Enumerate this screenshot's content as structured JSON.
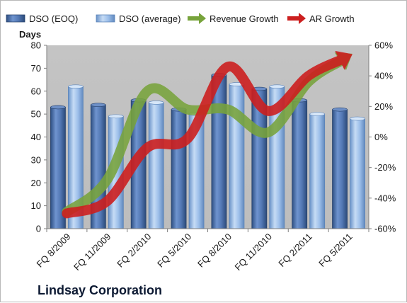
{
  "chart_data": {
    "type": "bar",
    "title": "Lindsay Corporation",
    "ylabel": "Days",
    "ylim": [
      0,
      80
    ],
    "yticks": [
      0,
      10,
      20,
      30,
      40,
      50,
      60,
      70,
      80
    ],
    "y2lim": [
      -0.6,
      0.6
    ],
    "y2ticks": [
      "-60%",
      "-40%",
      "-20%",
      "0%",
      "20%",
      "40%",
      "60%"
    ],
    "y2tick_values": [
      -0.6,
      -0.4,
      -0.2,
      0,
      0.2,
      0.4,
      0.6
    ],
    "categories": [
      "FQ 8/2009",
      "FQ 11/2009",
      "FQ 2/2010",
      "FQ 5/2010",
      "FQ 8/2010",
      "FQ 11/2010",
      "FQ 2/2011",
      "FQ 5/2011"
    ],
    "series": [
      {
        "name": "DSO (EOQ)",
        "type": "bar",
        "axis": "left",
        "color": "#4a6fa8",
        "values": [
          53,
          54,
          56,
          52,
          67,
          61,
          56,
          52
        ]
      },
      {
        "name": "DSO (average)",
        "type": "bar",
        "axis": "left",
        "color": "#8fb4e3",
        "values": [
          62,
          49,
          55,
          50,
          63,
          62,
          50,
          48
        ]
      },
      {
        "name": "Revenue Growth",
        "type": "line",
        "axis": "right",
        "color": "#77a33b",
        "values": [
          -0.49,
          -0.28,
          0.3,
          0.18,
          0.18,
          0.03,
          0.36,
          0.53
        ]
      },
      {
        "name": "AR Growth",
        "type": "line",
        "axis": "right",
        "color": "#cc1f1f",
        "values": [
          -0.5,
          -0.42,
          -0.07,
          -0.01,
          0.46,
          0.17,
          0.4,
          0.53
        ]
      }
    ],
    "grid": false,
    "legend": "top",
    "plot_background": "#c0c0c0"
  }
}
